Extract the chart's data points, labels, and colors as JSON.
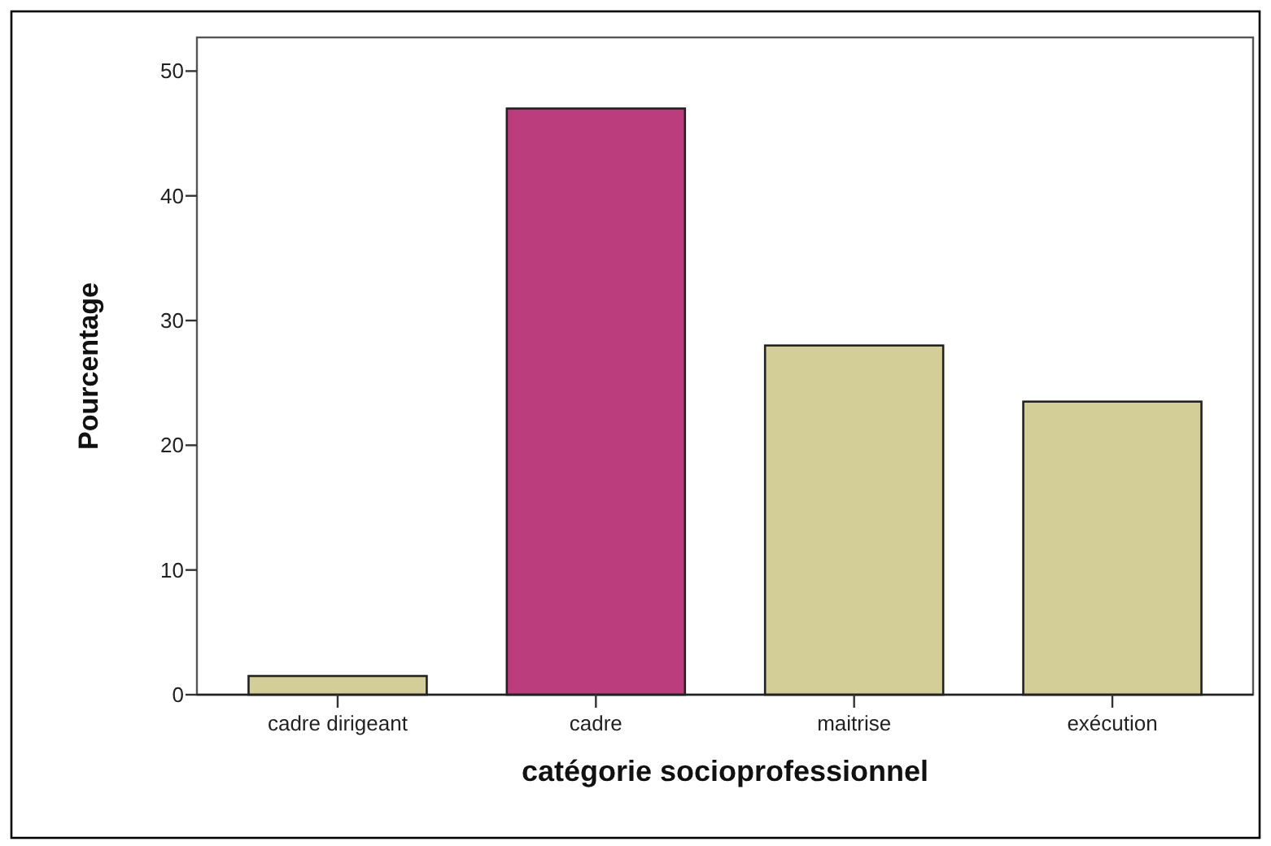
{
  "chart_data": {
    "type": "bar",
    "xlabel": "catégorie socioprofessionnel",
    "ylabel": "Pourcentage",
    "categories": [
      "cadre dirigeant",
      "cadre",
      "maitrise",
      "exécution"
    ],
    "values": [
      1.5,
      47,
      28,
      23.5
    ],
    "colors": [
      "#d3ce97",
      "#bb3d7d",
      "#d3ce97",
      "#d3ce97"
    ],
    "ylim": [
      0,
      52.7
    ],
    "yticks": [
      0,
      10,
      20,
      30,
      40,
      50
    ],
    "grid": false
  }
}
